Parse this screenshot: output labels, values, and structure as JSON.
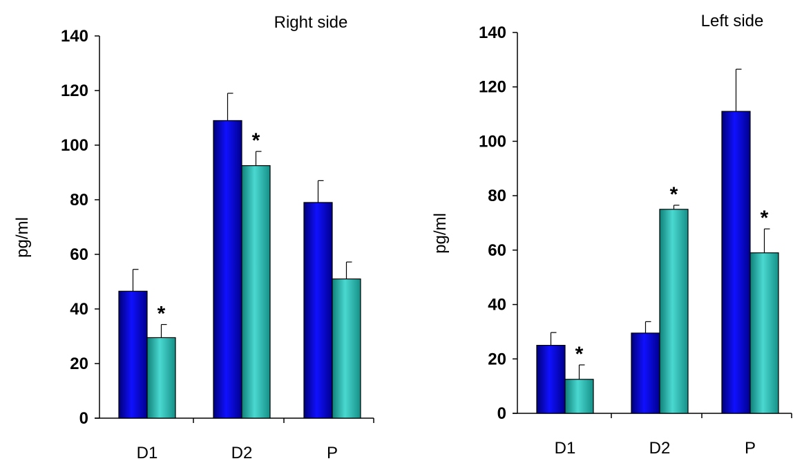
{
  "colors": {
    "series_1": "#0a0ad8",
    "series_2": "#2ec4bc",
    "axis": "#000000",
    "background": "#ffffff"
  },
  "chart_data": [
    {
      "type": "bar",
      "title": "Right side",
      "ylabel": "pg/ml",
      "ylim": [
        0,
        140
      ],
      "yticks": [
        0,
        20,
        40,
        60,
        80,
        100,
        120,
        140
      ],
      "grid": false,
      "categories": [
        "D1",
        "D2",
        "P"
      ],
      "series": [
        {
          "values": [
            46.5,
            109,
            79
          ],
          "errors": [
            8,
            10,
            8
          ]
        },
        {
          "values": [
            29.5,
            92.5,
            51
          ],
          "errors": [
            4.8,
            5.2,
            6.2
          ]
        }
      ],
      "significance": [
        {
          "category": "D1",
          "series": 1,
          "label": "*"
        },
        {
          "category": "D2",
          "series": 1,
          "label": "*"
        }
      ]
    },
    {
      "type": "bar",
      "title": "Left side",
      "ylabel": "pg/ml",
      "ylim": [
        0,
        140
      ],
      "yticks": [
        0,
        20,
        40,
        60,
        80,
        100,
        120,
        140
      ],
      "grid": false,
      "categories": [
        "D1",
        "D2",
        "P"
      ],
      "series": [
        {
          "values": [
            25,
            29.5,
            111
          ],
          "errors": [
            4.7,
            4.2,
            15.5
          ]
        },
        {
          "values": [
            12.5,
            75,
            59
          ],
          "errors": [
            5.3,
            1.5,
            8.8
          ]
        }
      ],
      "significance": [
        {
          "category": "D1",
          "series": 1,
          "label": "*"
        },
        {
          "category": "D2",
          "series": 1,
          "label": "*"
        },
        {
          "category": "P",
          "series": 1,
          "label": "*"
        }
      ]
    }
  ]
}
